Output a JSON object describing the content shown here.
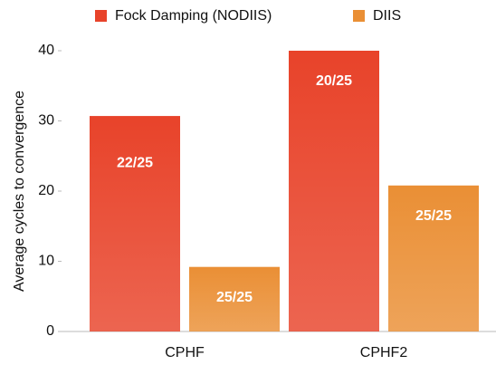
{
  "chart_data": {
    "type": "bar",
    "y_label": "Average cycles to convergence",
    "categories": [
      "CPHF",
      "CPHF2"
    ],
    "series": [
      {
        "name": "Fock Damping (NODIIS)",
        "color": "#e8432a",
        "values": [
          30.7,
          40
        ],
        "annotations": [
          "22/25",
          "20/25"
        ]
      },
      {
        "name": "DIIS",
        "color": "#ea8f35",
        "values": [
          9.2,
          20.8
        ],
        "annotations": [
          "25/25",
          "25/25"
        ]
      }
    ],
    "ylim": [
      0,
      40
    ],
    "yticks": [
      0,
      10,
      20,
      30,
      40
    ]
  }
}
